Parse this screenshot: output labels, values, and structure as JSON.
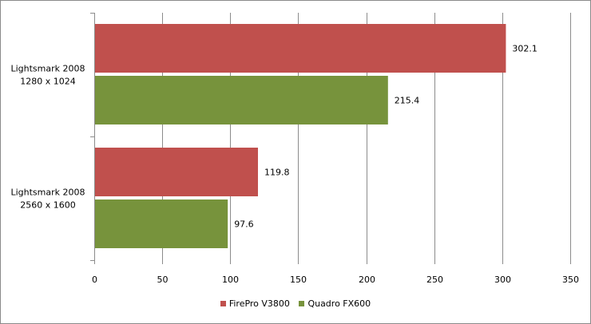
{
  "chart_data": {
    "type": "bar",
    "orientation": "horizontal",
    "categories": [
      [
        "Lightsmark 2008",
        "1280 x 1024"
      ],
      [
        "Lightsmark 2008",
        "2560 x 1600"
      ]
    ],
    "series": [
      {
        "name": "FirePro V3800",
        "color": "#c0504d",
        "values": [
          302.1,
          119.8
        ],
        "labels": [
          "302.1",
          "119.8"
        ]
      },
      {
        "name": "Quadro FX600",
        "color": "#77933c",
        "values": [
          215.4,
          97.6
        ],
        "labels": [
          "215.4",
          "97.6"
        ]
      }
    ],
    "xlim": [
      0,
      350
    ],
    "xticks": [
      "0",
      "50",
      "100",
      "150",
      "200",
      "250",
      "300",
      "350"
    ],
    "grid": true,
    "legend_position": "bottom",
    "title": "",
    "xlabel": "",
    "ylabel": ""
  }
}
